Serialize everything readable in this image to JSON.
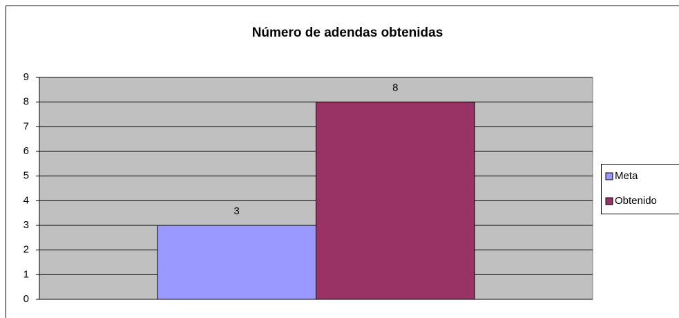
{
  "chart_data": {
    "type": "bar",
    "title": "Número de adendas obtenidas",
    "categories": [
      null
    ],
    "series": [
      {
        "name": "Meta",
        "color": "#9999ff",
        "values": [
          3
        ]
      },
      {
        "name": "Obtenido",
        "color": "#993366",
        "values": [
          8
        ]
      }
    ],
    "ylim": [
      0,
      9
    ],
    "yticks": [
      0,
      1,
      2,
      3,
      4,
      5,
      6,
      7,
      8,
      9
    ],
    "grid": true,
    "legend": "right",
    "plot_background": "#c0c0c0"
  }
}
